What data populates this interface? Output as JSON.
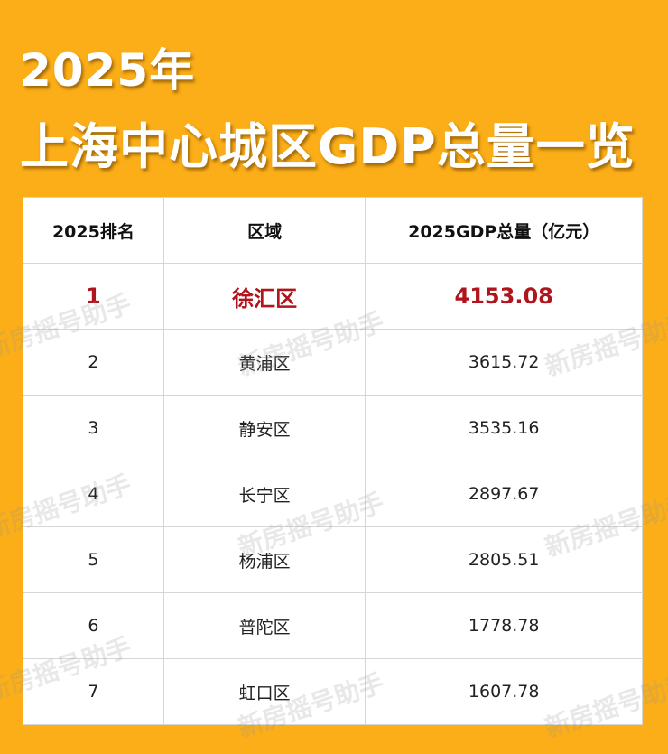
{
  "title": {
    "line1": "2025年",
    "line2": "上海中心城区GDP总量一览"
  },
  "table": {
    "headers": [
      "2025排名",
      "区域",
      "2025GDP总量（亿元）"
    ],
    "rows": [
      {
        "rank": "1",
        "district": "徐汇区",
        "gdp": "4153.08"
      },
      {
        "rank": "2",
        "district": "黄浦区",
        "gdp": "3615.72"
      },
      {
        "rank": "3",
        "district": "静安区",
        "gdp": "3535.16"
      },
      {
        "rank": "4",
        "district": "长宁区",
        "gdp": "2897.67"
      },
      {
        "rank": "5",
        "district": "杨浦区",
        "gdp": "2805.51"
      },
      {
        "rank": "6",
        "district": "普陀区",
        "gdp": "1778.78"
      },
      {
        "rank": "7",
        "district": "虹口区",
        "gdp": "1607.78"
      }
    ]
  },
  "watermark": "新房摇号助手",
  "colors": {
    "background": "#fbae17",
    "highlight": "#b0141c"
  }
}
